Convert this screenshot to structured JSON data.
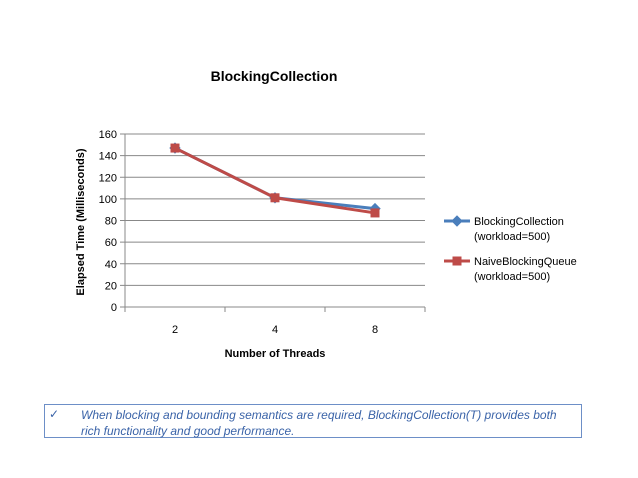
{
  "chart_data": {
    "type": "line",
    "title": "BlockingCollection",
    "xlabel": "Number of Threads",
    "ylabel": "Elapsed Time (Milliseconds)",
    "categories": [
      "2",
      "4",
      "8"
    ],
    "ylim": [
      0,
      160
    ],
    "yticks": [
      0,
      20,
      40,
      60,
      80,
      100,
      120,
      140,
      160
    ],
    "grid": true,
    "legend_position": "right",
    "series": [
      {
        "name": "BlockingCollection",
        "legend_line2": "(workload=500)",
        "values": [
          147,
          101,
          91
        ],
        "color": "#4a7ebb",
        "marker": "diamond"
      },
      {
        "name": "NaiveBlockingQueue",
        "legend_line2": "(workload=500)",
        "values": [
          147,
          101,
          87
        ],
        "color": "#be4b48",
        "marker": "square"
      }
    ]
  },
  "note": {
    "check": "✓",
    "text": "When blocking and bounding semantics are required, BlockingCollection(T) provides both rich functionality and good performance."
  }
}
